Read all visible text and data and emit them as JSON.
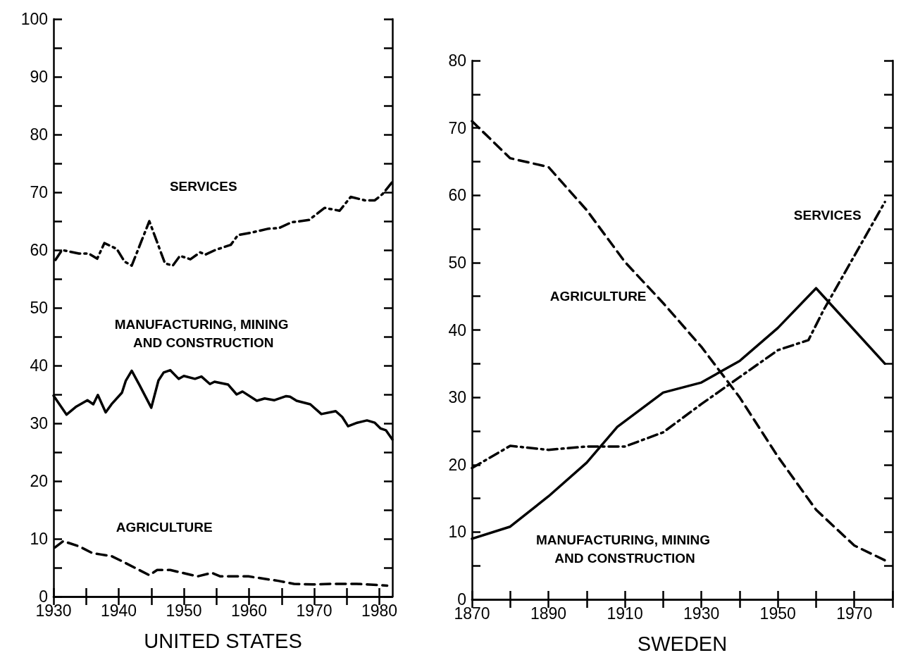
{
  "chart_data": [
    {
      "type": "line",
      "xlabel": "UNITED STATES",
      "xlim": [
        1930,
        1982
      ],
      "xticks": [
        1930,
        {
          "value": 1935,
          "label": null
        },
        1940,
        {
          "value": 1945,
          "label": null
        },
        1950,
        {
          "value": 1955,
          "label": null
        },
        1960,
        {
          "value": 1965,
          "label": null
        },
        1970,
        {
          "value": 1975,
          "label": null
        },
        1980
      ],
      "ylim": [
        0,
        100
      ],
      "yticks": [
        0,
        {
          "value": 5,
          "label": null
        },
        10,
        {
          "value": 15,
          "label": null
        },
        20,
        {
          "value": 25,
          "label": null
        },
        30,
        {
          "value": 35,
          "label": null
        },
        40,
        {
          "value": 45,
          "label": null
        },
        50,
        {
          "value": 55,
          "label": null
        },
        60,
        {
          "value": 65,
          "label": null
        },
        70,
        {
          "value": 75,
          "label": null
        },
        80,
        {
          "value": 85,
          "label": null
        },
        90,
        {
          "value": 95,
          "label": null
        },
        100
      ],
      "grid": false,
      "marker": "none",
      "series": [
        {
          "name": "SERVICES",
          "color": "#000000",
          "line_style": "dashdot",
          "x": [
            1930.3,
            1931.3,
            1933.9,
            1935.4,
            1936.7,
            1937.8,
            1939.7,
            1940.9,
            1942,
            1944.7,
            1947.1,
            1948.3,
            1949.4,
            1951,
            1952.5,
            1953.3,
            1954.8,
            1957.2,
            1958.3,
            1960.3,
            1963,
            1964.6,
            1966.5,
            1969.2,
            1971.6,
            1973.9,
            1975.6,
            1977.8,
            1979.3,
            1980.5,
            1982
          ],
          "values": [
            58.3,
            60,
            59.4,
            59.4,
            58.5,
            61.2,
            60.2,
            58,
            57.3,
            65,
            57.7,
            57.3,
            59,
            58.4,
            59.6,
            59.2,
            60,
            60.9,
            62.6,
            63,
            63.7,
            63.8,
            64.8,
            65.2,
            67.3,
            66.8,
            69.2,
            68.6,
            68.6,
            69.7,
            71.8
          ]
        },
        {
          "name": "MANUFACTURING, MINING AND CONSTRUCTION",
          "color": "#000000",
          "line_style": "solid",
          "x": [
            1930,
            1932,
            1933.5,
            1935.2,
            1936.1,
            1936.8,
            1938,
            1938.9,
            1940.5,
            1941.1,
            1942,
            1943.2,
            1945,
            1946.1,
            1946.9,
            1947.9,
            1949.2,
            1950,
            1951.7,
            1952.7,
            1954,
            1954.7,
            1956.8,
            1958.1,
            1959,
            1961.2,
            1962.4,
            1963.9,
            1965.7,
            1966.3,
            1967.3,
            1969.4,
            1971.1,
            1973.3,
            1974.3,
            1975.2,
            1976.6,
            1978.1,
            1979.3,
            1980.2,
            1981,
            1982
          ],
          "values": [
            34.8,
            31.5,
            32.9,
            34,
            33.3,
            34.9,
            31.9,
            33.3,
            35.3,
            37.4,
            39.1,
            36.6,
            32.7,
            37.4,
            38.8,
            39.2,
            37.7,
            38.2,
            37.7,
            38.1,
            36.8,
            37.2,
            36.7,
            35,
            35.5,
            33.9,
            34.3,
            34,
            34.7,
            34.6,
            33.9,
            33.3,
            31.6,
            32.1,
            31.1,
            29.5,
            30.1,
            30.5,
            30.1,
            29.1,
            28.8,
            27.2
          ]
        },
        {
          "name": "AGRICULTURE",
          "color": "#000000",
          "line_style": "dashed",
          "x": [
            1930.2,
            1931.5,
            1933.9,
            1936,
            1937.2,
            1938.9,
            1940.9,
            1944.7,
            1945.9,
            1947.9,
            1949.8,
            1952.1,
            1954.3,
            1955.6,
            1959.9,
            1964.6,
            1966.9,
            1970,
            1972.7,
            1976.6,
            1981.2
          ],
          "values": [
            8.5,
            9.6,
            8.7,
            7.5,
            7.3,
            7,
            5.9,
            3.7,
            4.6,
            4.6,
            4.1,
            3.5,
            4.1,
            3.5,
            3.5,
            2.7,
            2.2,
            2.1,
            2.2,
            2.2,
            1.9
          ]
        }
      ]
    },
    {
      "type": "line",
      "xlabel": "SWEDEN",
      "xlim": [
        1870,
        1980
      ],
      "xticks": [
        1870,
        {
          "value": 1880,
          "label": null
        },
        1890,
        {
          "value": 1900,
          "label": null
        },
        1910,
        {
          "value": 1920,
          "label": null
        },
        1930,
        {
          "value": 1940,
          "label": null
        },
        1950,
        {
          "value": 1960,
          "label": null
        },
        1970,
        {
          "value": 1980,
          "label": null
        }
      ],
      "ylim": [
        0,
        80
      ],
      "yticks": [
        0,
        {
          "value": 5,
          "label": null
        },
        10,
        {
          "value": 15,
          "label": null
        },
        20,
        {
          "value": 25,
          "label": null
        },
        30,
        {
          "value": 35,
          "label": null
        },
        40,
        {
          "value": 45,
          "label": null
        },
        50,
        {
          "value": 55,
          "label": null
        },
        60,
        {
          "value": 65,
          "label": null
        },
        70,
        {
          "value": 75,
          "label": null
        },
        80
      ],
      "grid": false,
      "marker": "none",
      "series": [
        {
          "name": "SERVICES",
          "color": "#000000",
          "line_style": "dashdot",
          "x": [
            1870,
            1880,
            1890,
            1900,
            1910,
            1920,
            1930,
            1940,
            1950,
            1958,
            1962,
            1970,
            1978
          ],
          "values": [
            19.5,
            22.8,
            22.2,
            22.7,
            22.7,
            24.8,
            29,
            33,
            37,
            38.5,
            43,
            51,
            59
          ]
        },
        {
          "name": "MANUFACTURING, MINING AND CONSTRUCTION",
          "color": "#000000",
          "line_style": "solid",
          "x": [
            1870,
            1880,
            1890,
            1900,
            1908,
            1920,
            1930,
            1940,
            1950,
            1960,
            1978
          ],
          "values": [
            9,
            10.8,
            15.3,
            20.3,
            25.6,
            30.7,
            32.2,
            35.4,
            40.3,
            46.2,
            35
          ]
        },
        {
          "name": "AGRICULTURE",
          "color": "#000000",
          "line_style": "dashed",
          "x": [
            1870,
            1880,
            1890,
            1900,
            1910,
            1920,
            1930,
            1940,
            1950,
            1960,
            1970,
            1978
          ],
          "values": [
            71,
            65.5,
            64.2,
            57.8,
            50.1,
            44,
            37.5,
            30,
            21.2,
            13.3,
            8,
            5.8
          ]
        }
      ]
    }
  ]
}
